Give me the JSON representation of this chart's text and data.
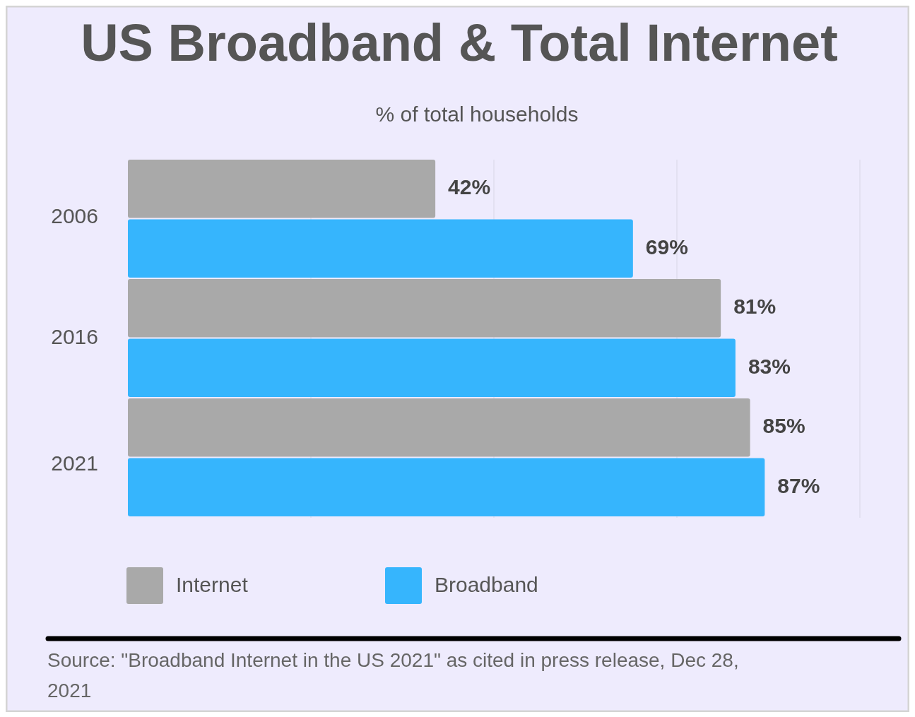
{
  "chart_data": {
    "type": "bar",
    "orientation": "horizontal",
    "title": "US Broadband & Total Internet",
    "subtitle": "% of total households",
    "categories": [
      "2006",
      "2016",
      "2021"
    ],
    "series": [
      {
        "name": "Internet",
        "color": "#a9a9a9",
        "values": [
          42,
          81,
          85
        ],
        "value_labels": [
          "42%",
          "81%",
          "85%"
        ]
      },
      {
        "name": "Broadband",
        "color": "#36b5fd",
        "values": [
          69,
          83,
          87
        ],
        "value_labels": [
          "69%",
          "83%",
          "87%"
        ]
      }
    ],
    "xlim": [
      0,
      100
    ],
    "xticks": [
      {
        "value": 25,
        "label": null
      },
      {
        "value": 50,
        "label": null
      },
      {
        "value": 75,
        "label": null
      },
      {
        "value": 100,
        "label": null
      }
    ],
    "tick_labels": "y",
    "grid": "x",
    "legend": "bottom",
    "annotations": [
      "Source: \"Broadband Internet in the US 2021\" as cited in press release, Dec 28, 2021"
    ]
  }
}
